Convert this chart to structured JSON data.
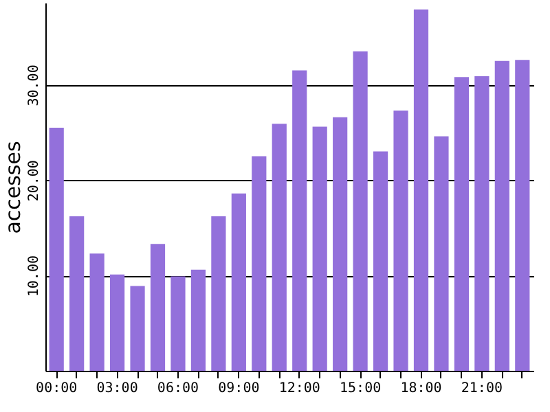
{
  "chart_data": {
    "type": "bar",
    "ylabel": "accesses",
    "categories": [
      "00:00",
      null,
      null,
      "03:00",
      null,
      null,
      "06:00",
      null,
      null,
      "09:00",
      null,
      null,
      "12:00",
      null,
      null,
      "15:00",
      null,
      null,
      "18:00",
      null,
      null,
      "21:00",
      null,
      null
    ],
    "values": [
      25.5,
      16.2,
      12.3,
      10.1,
      8.9,
      13.3,
      9.9,
      10.6,
      16.2,
      18.6,
      22.5,
      25.9,
      31.5,
      25.6,
      26.6,
      33.5,
      23.0,
      27.3,
      37.9,
      24.6,
      30.8,
      30.9,
      32.5,
      32.6
    ],
    "color": "#9370db",
    "ylim": [
      0,
      38.6
    ],
    "yticks": [
      {
        "value": 10,
        "label": "10.00"
      },
      {
        "value": 20,
        "label": "20.00"
      },
      {
        "value": 30,
        "label": "30.00"
      }
    ],
    "grid": "y"
  }
}
